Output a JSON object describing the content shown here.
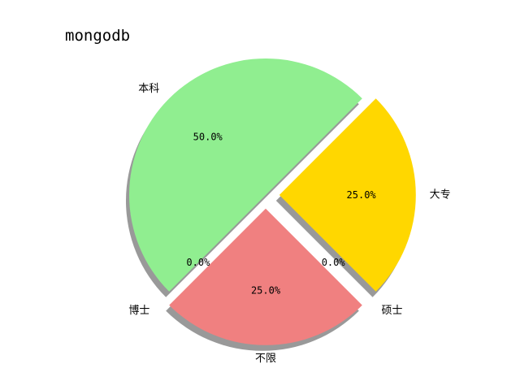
{
  "chart_data": {
    "type": "pie",
    "title": "mongodb",
    "categories": [
      "本科",
      "博士",
      "不限",
      "硕士",
      "大专"
    ],
    "values": [
      50.0,
      0.0,
      25.0,
      0.0,
      25.0
    ],
    "percent_labels": [
      "50.0%",
      "0.0%",
      "25.0%",
      "0.0%",
      "25.0%"
    ],
    "colors": [
      "#90ee90",
      "#7fb3e8",
      "#f08080",
      "#87cefa",
      "#ffd700"
    ],
    "exploded": [
      false,
      true,
      true,
      true,
      true
    ],
    "shadow": true,
    "start_angle_deg": 45,
    "direction": "counterclockwise"
  }
}
